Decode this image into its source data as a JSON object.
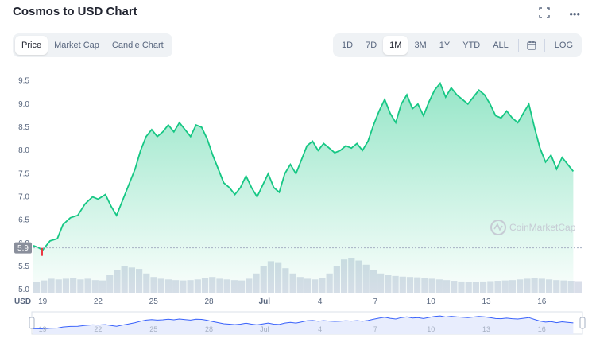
{
  "header": {
    "title": "Cosmos to USD Chart",
    "fullscreen_icon": "fullscreen-icon",
    "more_icon": "more-icon",
    "more_glyph": "•••"
  },
  "chart_tabs": [
    {
      "label": "Price",
      "active": true
    },
    {
      "label": "Market Cap",
      "active": false
    },
    {
      "label": "Candle Chart",
      "active": false
    }
  ],
  "range_buttons": [
    {
      "label": "1D",
      "active": false
    },
    {
      "label": "7D",
      "active": false
    },
    {
      "label": "1M",
      "active": true
    },
    {
      "label": "3M",
      "active": false
    },
    {
      "label": "1Y",
      "active": false
    },
    {
      "label": "YTD",
      "active": false
    },
    {
      "label": "ALL",
      "active": false
    }
  ],
  "calendar_icon": "calendar-icon",
  "log_label": "LOG",
  "watermark": "CoinMarketCap",
  "colors": {
    "line": "#16c784",
    "fill_top": "#16c784",
    "volume": "#cfd6e4",
    "current_price_badge": "#8a8f9c",
    "down_tick": "#ea3943",
    "navigator_line": "#3861fb",
    "navigator_fill": "#e8edfd"
  },
  "current_price_label": "5.9",
  "chart_data": {
    "type": "area",
    "ylabel": "USD",
    "ylim": [
      4.9,
      9.7
    ],
    "yticks": [
      "5.0",
      "5.5",
      "6.0",
      "6.5",
      "7.0",
      "7.5",
      "8.0",
      "8.5",
      "9.0",
      "9.5"
    ],
    "xticks": [
      "19",
      "22",
      "25",
      "28",
      "Jul",
      "4",
      "7",
      "10",
      "13",
      "16"
    ],
    "xlim_days": [
      18.5,
      48.2
    ],
    "series": [
      {
        "values": [
          [
            18.5,
            5.95
          ],
          [
            18.8,
            5.9
          ],
          [
            19.0,
            5.85
          ],
          [
            19.4,
            6.05
          ],
          [
            19.8,
            6.1
          ],
          [
            20.1,
            6.4
          ],
          [
            20.5,
            6.55
          ],
          [
            20.9,
            6.6
          ],
          [
            21.3,
            6.85
          ],
          [
            21.7,
            7.0
          ],
          [
            22.0,
            6.95
          ],
          [
            22.4,
            7.05
          ],
          [
            22.7,
            6.8
          ],
          [
            23.0,
            6.6
          ],
          [
            23.3,
            6.9
          ],
          [
            23.6,
            7.2
          ],
          [
            24.0,
            7.6
          ],
          [
            24.3,
            8.0
          ],
          [
            24.6,
            8.3
          ],
          [
            24.9,
            8.45
          ],
          [
            25.2,
            8.3
          ],
          [
            25.5,
            8.4
          ],
          [
            25.8,
            8.55
          ],
          [
            26.1,
            8.4
          ],
          [
            26.4,
            8.6
          ],
          [
            26.7,
            8.45
          ],
          [
            27.0,
            8.3
          ],
          [
            27.3,
            8.55
          ],
          [
            27.6,
            8.5
          ],
          [
            27.9,
            8.25
          ],
          [
            28.2,
            7.9
          ],
          [
            28.5,
            7.6
          ],
          [
            28.8,
            7.3
          ],
          [
            29.1,
            7.2
          ],
          [
            29.4,
            7.05
          ],
          [
            29.7,
            7.2
          ],
          [
            30.0,
            7.45
          ],
          [
            30.3,
            7.2
          ],
          [
            30.6,
            7.0
          ],
          [
            30.9,
            7.25
          ],
          [
            31.2,
            7.5
          ],
          [
            31.5,
            7.2
          ],
          [
            31.8,
            7.1
          ],
          [
            32.1,
            7.5
          ],
          [
            32.4,
            7.7
          ],
          [
            32.7,
            7.5
          ],
          [
            33.0,
            7.8
          ],
          [
            33.3,
            8.1
          ],
          [
            33.6,
            8.2
          ],
          [
            33.9,
            8.0
          ],
          [
            34.2,
            8.15
          ],
          [
            34.5,
            8.05
          ],
          [
            34.8,
            7.95
          ],
          [
            35.1,
            8.0
          ],
          [
            35.4,
            8.1
          ],
          [
            35.7,
            8.05
          ],
          [
            36.0,
            8.15
          ],
          [
            36.3,
            8.0
          ],
          [
            36.6,
            8.2
          ],
          [
            36.9,
            8.55
          ],
          [
            37.2,
            8.85
          ],
          [
            37.5,
            9.1
          ],
          [
            37.8,
            8.8
          ],
          [
            38.1,
            8.6
          ],
          [
            38.4,
            9.0
          ],
          [
            38.7,
            9.2
          ],
          [
            39.0,
            8.9
          ],
          [
            39.3,
            9.0
          ],
          [
            39.6,
            8.75
          ],
          [
            39.9,
            9.05
          ],
          [
            40.2,
            9.3
          ],
          [
            40.5,
            9.45
          ],
          [
            40.8,
            9.15
          ],
          [
            41.1,
            9.35
          ],
          [
            41.4,
            9.2
          ],
          [
            41.7,
            9.1
          ],
          [
            42.0,
            9.0
          ],
          [
            42.3,
            9.15
          ],
          [
            42.6,
            9.3
          ],
          [
            42.9,
            9.2
          ],
          [
            43.2,
            9.0
          ],
          [
            43.5,
            8.75
          ],
          [
            43.8,
            8.7
          ],
          [
            44.1,
            8.85
          ],
          [
            44.4,
            8.7
          ],
          [
            44.7,
            8.6
          ],
          [
            45.0,
            8.8
          ],
          [
            45.3,
            9.0
          ],
          [
            45.6,
            8.5
          ],
          [
            45.9,
            8.05
          ],
          [
            46.2,
            7.75
          ],
          [
            46.5,
            7.9
          ],
          [
            46.8,
            7.6
          ],
          [
            47.1,
            7.85
          ],
          [
            47.4,
            7.7
          ],
          [
            47.7,
            7.55
          ]
        ]
      }
    ],
    "volume": [
      0.3,
      0.35,
      0.4,
      0.38,
      0.4,
      0.42,
      0.38,
      0.4,
      0.36,
      0.35,
      0.5,
      0.65,
      0.75,
      0.72,
      0.68,
      0.55,
      0.45,
      0.4,
      0.38,
      0.36,
      0.35,
      0.36,
      0.38,
      0.42,
      0.45,
      0.4,
      0.38,
      0.36,
      0.35,
      0.4,
      0.55,
      0.75,
      0.9,
      0.85,
      0.7,
      0.55,
      0.45,
      0.4,
      0.38,
      0.42,
      0.55,
      0.75,
      0.95,
      1.0,
      0.92,
      0.8,
      0.65,
      0.55,
      0.5,
      0.48,
      0.46,
      0.45,
      0.44,
      0.42,
      0.4,
      0.38,
      0.36,
      0.34,
      0.32,
      0.3,
      0.3,
      0.32,
      0.33,
      0.34,
      0.35,
      0.36,
      0.38,
      0.4,
      0.42,
      0.4,
      0.38,
      0.36,
      0.35,
      0.34,
      0.33
    ],
    "grid": false
  }
}
